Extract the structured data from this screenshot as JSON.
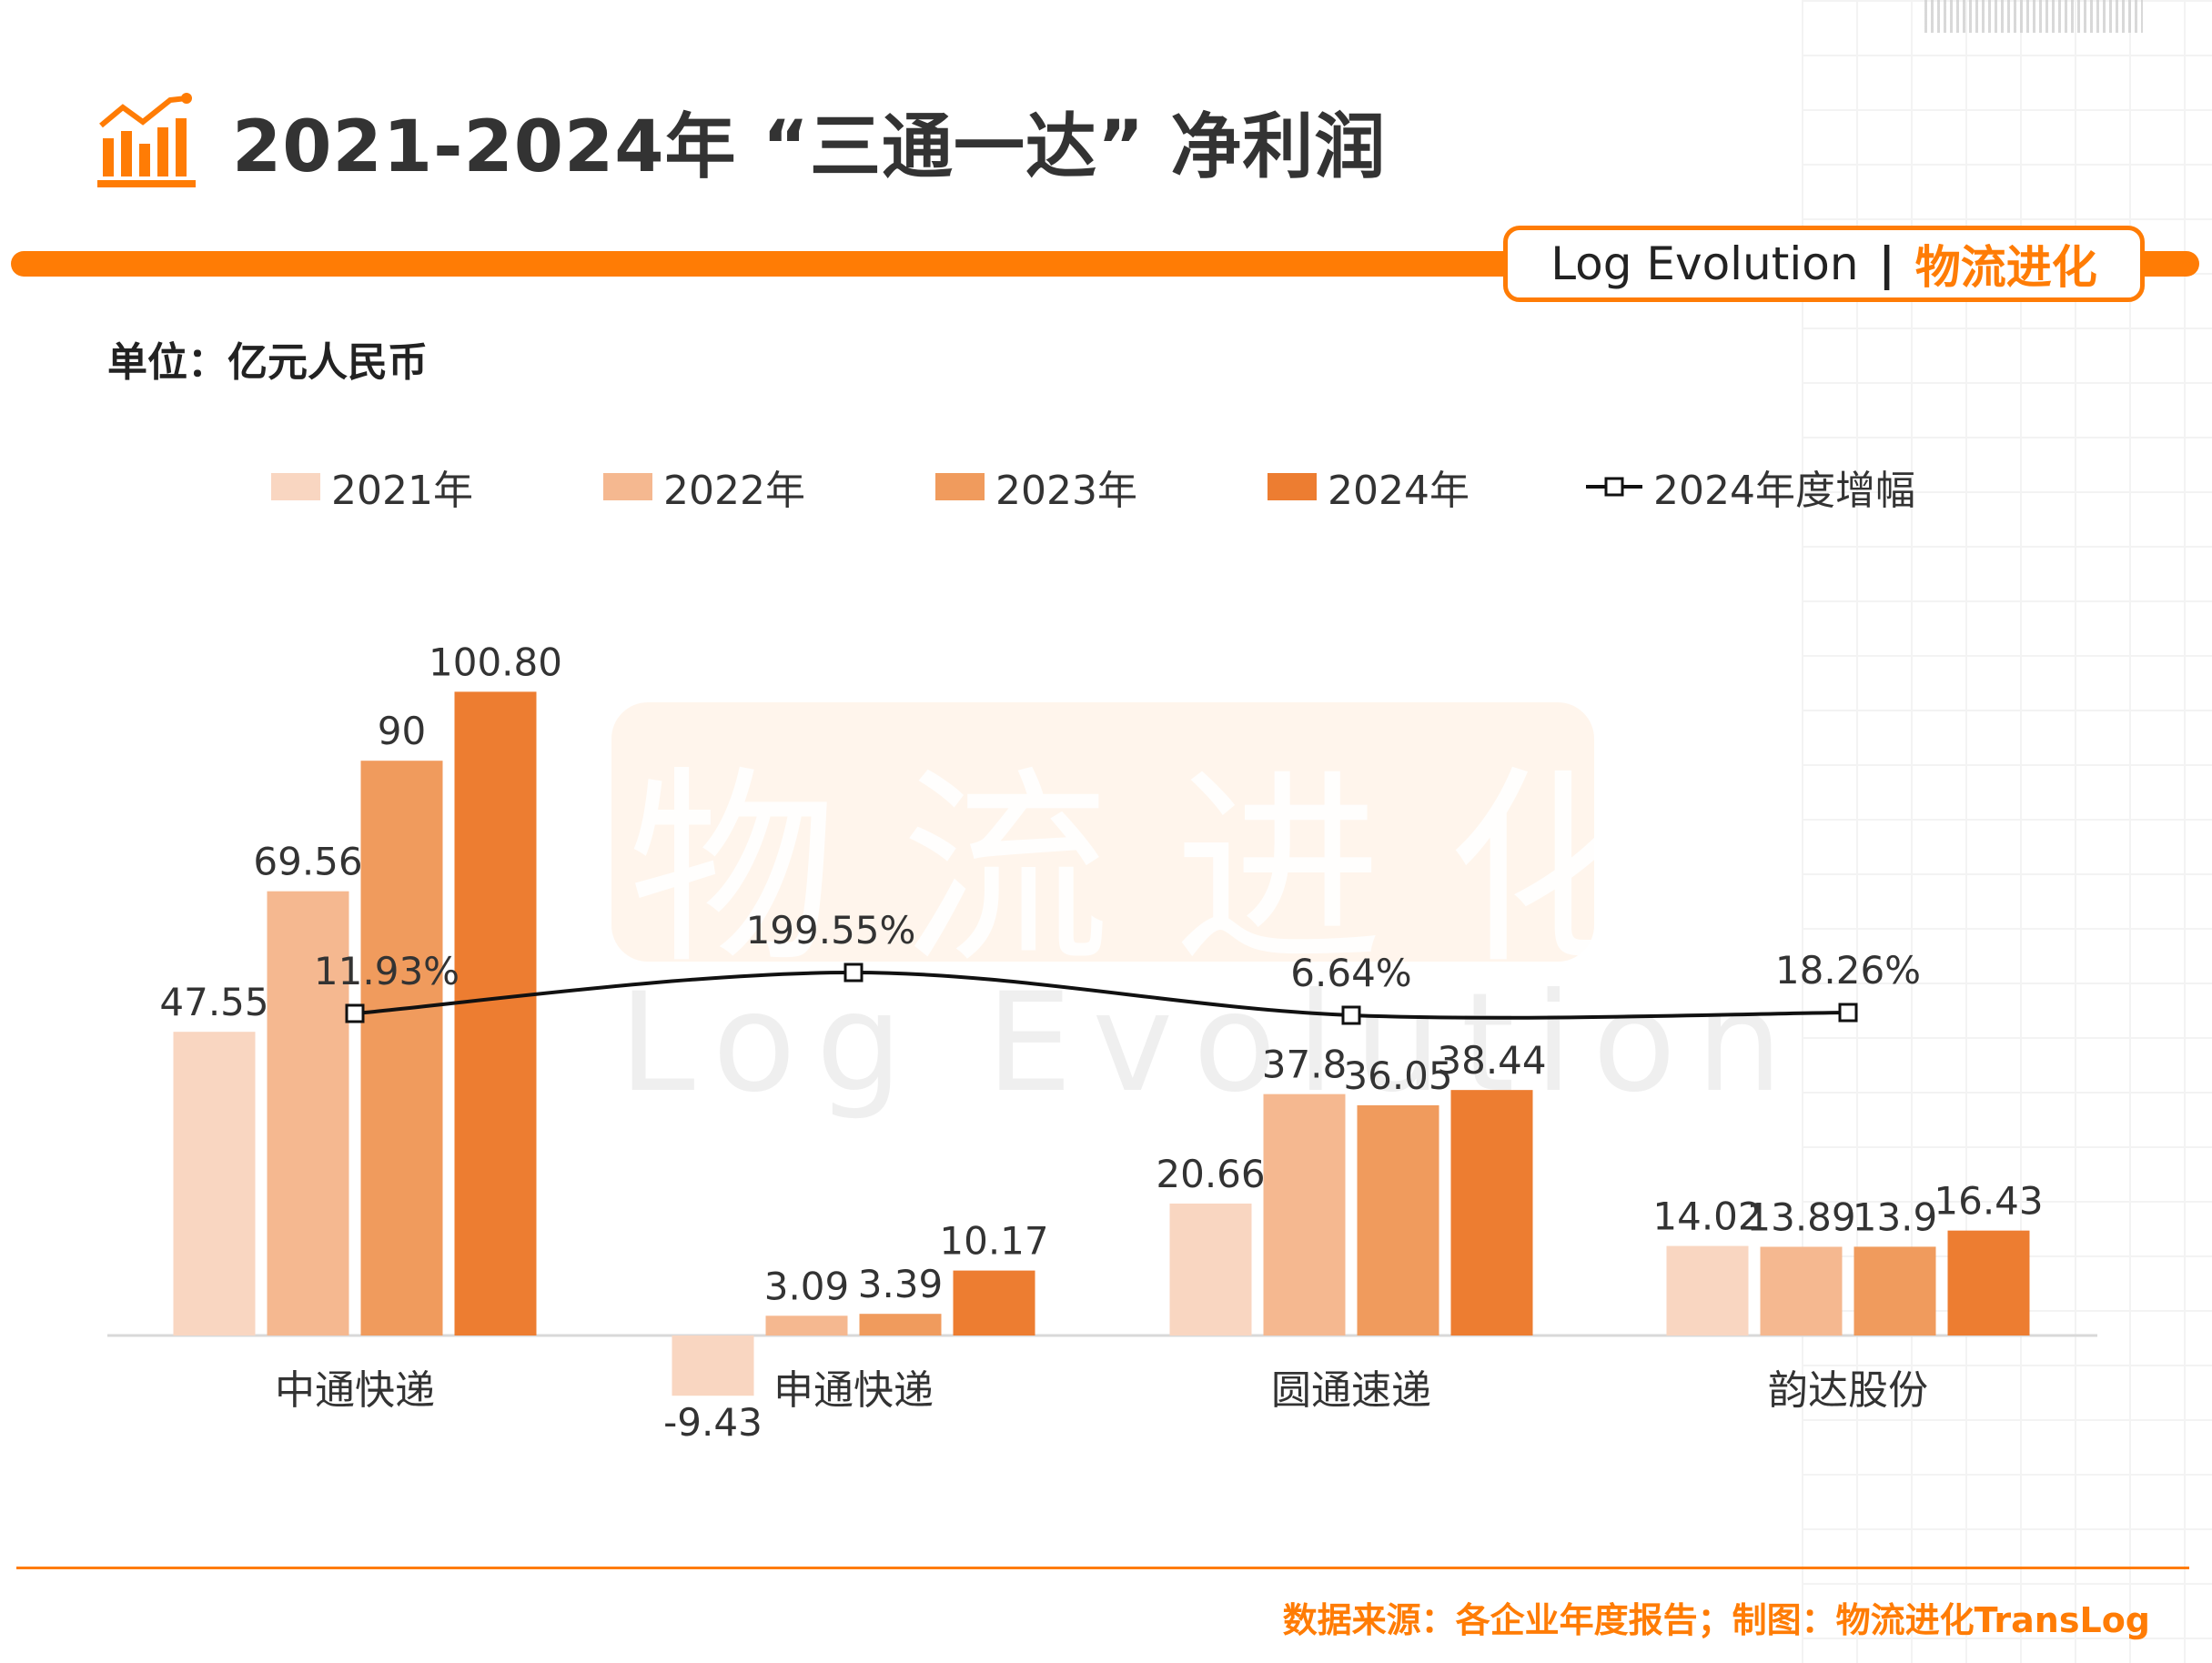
{
  "header": {
    "title": "2021-2024年 “三通一达” 净利润",
    "brand_en": "Log Evolution",
    "brand_sep": "|",
    "brand_cn": "物流进化"
  },
  "unit_label": "单位：亿元人民币",
  "watermark": {
    "cn": "物流进化",
    "en": "Log Evolution"
  },
  "colors": {
    "accent": "#ff7c05",
    "series": [
      "#f9d6c1",
      "#f5b890",
      "#f09b5d",
      "#ed7d31"
    ],
    "line": "#111111"
  },
  "source": "数据来源：各企业年度报告；制图：物流进化TransLog",
  "chart_data": {
    "type": "bar",
    "categories": [
      "中通快递",
      "申通快递",
      "圆通速递",
      "韵达股份"
    ],
    "series": [
      {
        "name": "2021年",
        "values": [
          47.55,
          -9.43,
          20.66,
          14.02
        ],
        "labels": [
          "47.55",
          "-9.43",
          "20.66",
          "14.02"
        ]
      },
      {
        "name": "2022年",
        "values": [
          69.56,
          3.09,
          37.8,
          13.89
        ],
        "labels": [
          "69.56",
          "3.09",
          "37.8",
          "13.89"
        ]
      },
      {
        "name": "2023年",
        "values": [
          90,
          3.39,
          36.05,
          13.9
        ],
        "labels": [
          "90",
          "3.39",
          "36.05",
          "13.9"
        ]
      },
      {
        "name": "2024年",
        "values": [
          100.8,
          10.17,
          38.44,
          16.43
        ],
        "labels": [
          "100.80",
          "10.17",
          "38.44",
          "16.43"
        ]
      }
    ],
    "line_series": {
      "name": "2024年度增幅",
      "type": "line",
      "values": [
        11.93,
        199.55,
        6.64,
        18.26
      ],
      "labels": [
        "11.93%",
        "199.55%",
        "6.64%",
        "18.26%"
      ]
    },
    "ylim": [
      -20,
      110
    ],
    "legend_position": "top",
    "grid": false
  }
}
